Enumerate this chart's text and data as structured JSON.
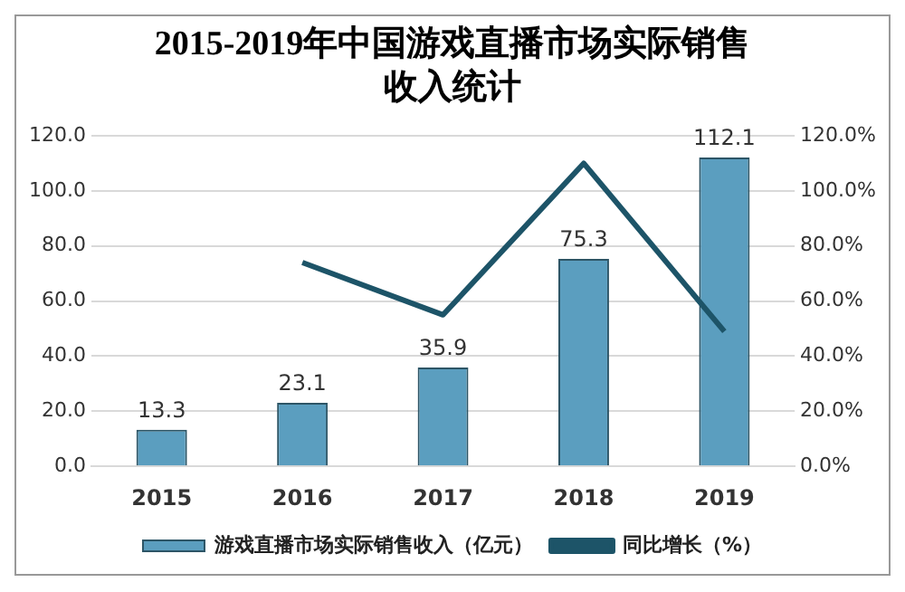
{
  "chart_data": {
    "type": "bar",
    "title": "2015-2019年中国游戏直播市场实际销售收入统计",
    "categories": [
      "2015",
      "2016",
      "2017",
      "2018",
      "2019"
    ],
    "series": [
      {
        "name": "游戏直播市场实际销售收入（亿元）",
        "color": "#5b9ebf",
        "values": [
          13.3,
          23.1,
          35.9,
          75.3,
          112.1
        ],
        "value_labels": [
          "13.3",
          "23.1",
          "35.9",
          "75.3",
          "112.1"
        ]
      },
      {
        "name": "同比增长（%）",
        "type": "line",
        "axis": "y2",
        "color": "#1d5468",
        "values": [
          null,
          74,
          55,
          110,
          49
        ]
      }
    ],
    "ylim": [
      0,
      120
    ],
    "yticks": [
      {
        "value": 0,
        "label": "0.0"
      },
      {
        "value": 20,
        "label": "20.0"
      },
      {
        "value": 40,
        "label": "40.0"
      },
      {
        "value": 60,
        "label": "60.0"
      },
      {
        "value": 80,
        "label": "80.0"
      },
      {
        "value": 100,
        "label": "100.0"
      },
      {
        "value": 120,
        "label": "120.0"
      }
    ],
    "y2lim": [
      0,
      120
    ],
    "y2ticks": [
      {
        "value": 0,
        "label": "0.0%"
      },
      {
        "value": 20,
        "label": "20.0%"
      },
      {
        "value": 40,
        "label": "40.0%"
      },
      {
        "value": 60,
        "label": "60.0%"
      },
      {
        "value": 80,
        "label": "80.0%"
      },
      {
        "value": 100,
        "label": "100.0%"
      },
      {
        "value": 120,
        "label": "120.0%"
      }
    ],
    "grid": "y",
    "legend": "bottom",
    "marker": "none",
    "line_style": "solid"
  }
}
